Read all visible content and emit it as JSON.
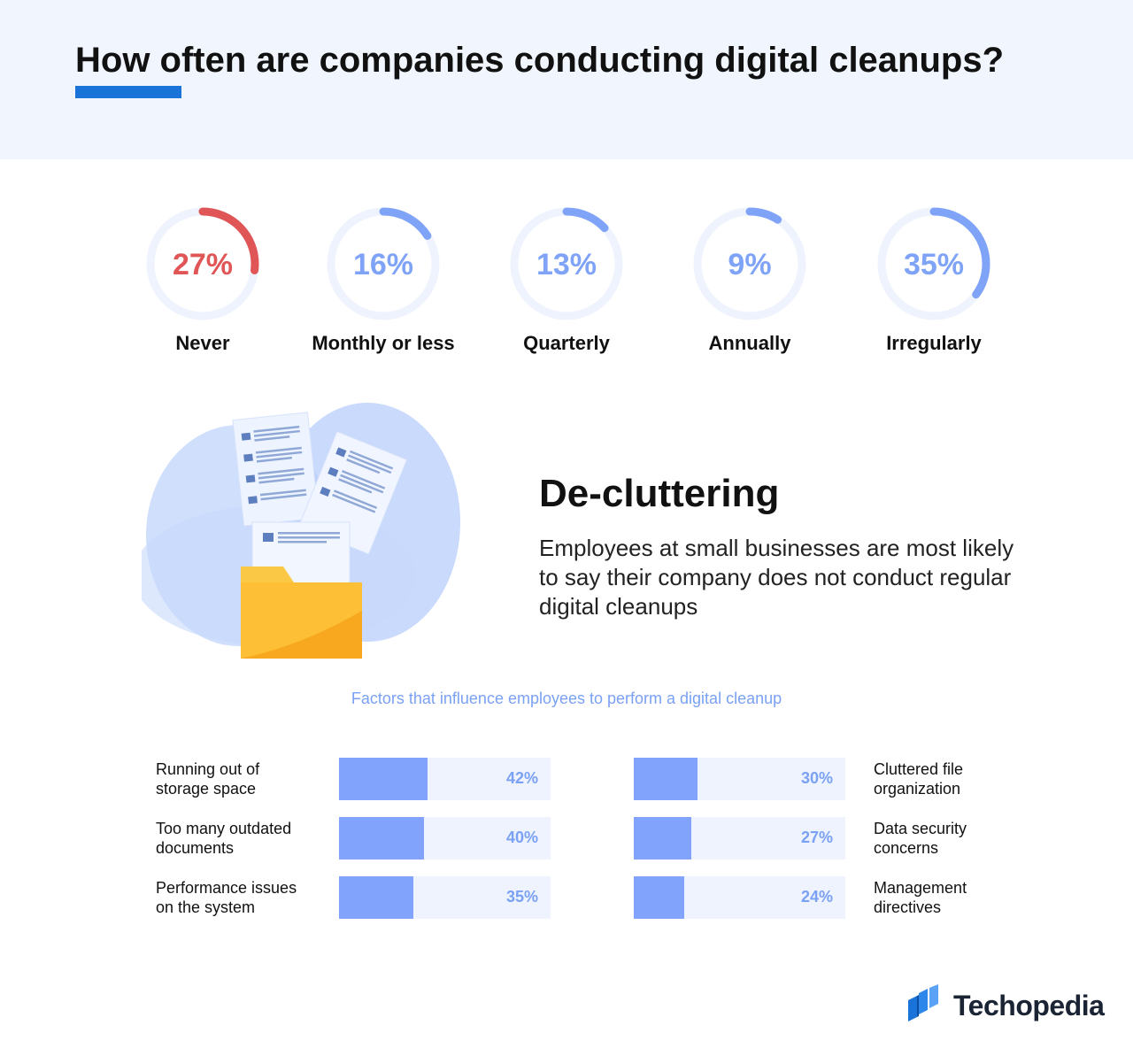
{
  "colors": {
    "header_bg": "#f0f5fe",
    "accent_blue": "#1a73d9",
    "ring_red": "#e05555",
    "ring_blue": "#7fa3f7",
    "ring_track": "#eef3fd",
    "bar_fill": "#81a3fb",
    "bar_track": "#eef3fd",
    "value_blue": "#7aa1f4",
    "folder": "#f8b72c"
  },
  "header": {
    "title": "How often are companies conducting digital cleanups?"
  },
  "chart_data": [
    {
      "type": "pie",
      "categories": [
        "Never",
        "Monthly or less",
        "Quarterly",
        "Annually",
        "Irregularly"
      ],
      "values": [
        27,
        16,
        13,
        9,
        35
      ],
      "value_labels": [
        "27%",
        "16%",
        "13%",
        "9%",
        "35%"
      ],
      "highlight_color": [
        "#e05555",
        "#7fa3f7",
        "#7fa3f7",
        "#7fa3f7",
        "#7fa3f7"
      ]
    },
    {
      "type": "bar",
      "title": "Factors that influence employees to perform a digital cleanup",
      "categories": [
        "Running out of storage space",
        "Too many outdated documents",
        "Performance issues on the system",
        "Cluttered file organization",
        "Data security concerns",
        "Management directives"
      ],
      "label_lines": [
        [
          "Running out of",
          "storage space"
        ],
        [
          "Too many outdated",
          "documents"
        ],
        [
          "Performance issues",
          "on the system"
        ],
        [
          "Cluttered file",
          "organization"
        ],
        [
          "Data security",
          "concerns"
        ],
        [
          "Management",
          "directives"
        ]
      ],
      "values": [
        42,
        40,
        35,
        30,
        27,
        24
      ],
      "value_labels": [
        "42%",
        "40%",
        "35%",
        "30%",
        "27%",
        "24%"
      ],
      "xlim": [
        0,
        100
      ]
    }
  ],
  "section": {
    "title": "De-cluttering",
    "text": "Employees at small businesses are most likely to say their company does not conduct regular digital cleanups"
  },
  "brand": {
    "name": "Techopedia",
    "icon": "techopedia-logo-icon"
  }
}
